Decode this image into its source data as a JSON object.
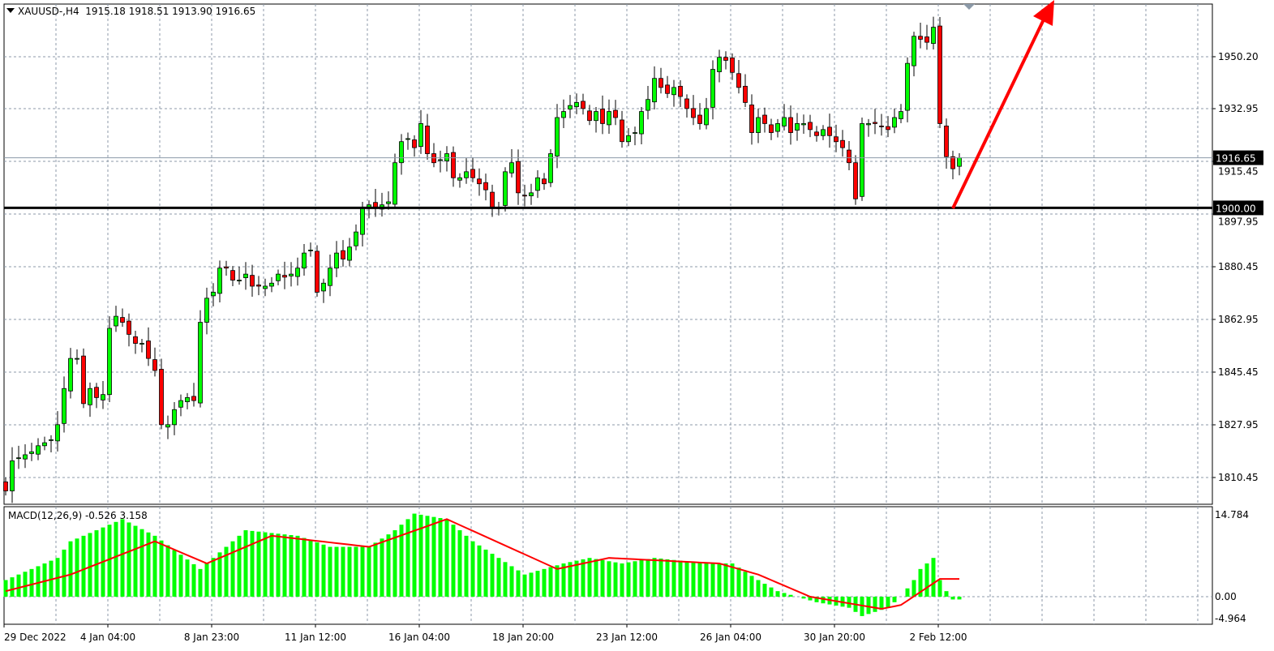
{
  "header": {
    "symbol": "XAUUSD-,H4",
    "ohlc": "1915.18 1918.51 1913.90 1916.65"
  },
  "chart_data": {
    "type": "candlestick",
    "symbol": "XAUUSD-",
    "timeframe": "H4",
    "y_ticks": [
      "1950.20",
      "1932.95",
      "1915.45",
      "1897.95",
      "1880.45",
      "1862.95",
      "1845.45",
      "1827.95",
      "1810.45"
    ],
    "ylim": [
      1805,
      1968
    ],
    "x_ticks": [
      "29 Dec 2022",
      "4 Jan 04:00",
      "8 Jan 23:00",
      "11 Jan 12:00",
      "16 Jan 04:00",
      "18 Jan 20:00",
      "23 Jan 12:00",
      "26 Jan 04:00",
      "30 Jan 20:00",
      "2 Feb 12:00"
    ],
    "grid": true,
    "bull_color": "#00ff00",
    "bear_color": "#ff0000",
    "close": [
      1806,
      1816,
      1817,
      1818,
      1819,
      1821,
      1822,
      1823,
      1828,
      1840,
      1850,
      1850,
      1835,
      1840,
      1837,
      1838,
      1860,
      1864,
      1862,
      1858,
      1855,
      1855,
      1850,
      1846,
      1828,
      1828,
      1833,
      1836,
      1837,
      1836,
      1862,
      1870,
      1872,
      1880,
      1880,
      1876,
      1876,
      1878,
      1874,
      1874,
      1874,
      1875,
      1878,
      1877,
      1878,
      1880,
      1885,
      1886,
      1872,
      1875,
      1880,
      1885,
      1883,
      1887,
      1892,
      1900,
      1901,
      1900,
      1901,
      1902,
      1915,
      1922,
      1923,
      1920,
      1928,
      1918,
      1915,
      1916,
      1918,
      1910,
      1910,
      1912,
      1910,
      1908,
      1906,
      1900,
      1900,
      1912,
      1915,
      1905,
      1904,
      1905,
      1910,
      1908,
      1918,
      1930,
      1932,
      1934,
      1935,
      1933,
      1929,
      1932,
      1928,
      1932,
      1930,
      1922,
      1924,
      1925,
      1932,
      1936,
      1943,
      1940,
      1938,
      1940,
      1937,
      1933,
      1930,
      1928,
      1933,
      1946,
      1950,
      1949,
      1945,
      1940,
      1935,
      1925,
      1930,
      1928,
      1925,
      1928,
      1930,
      1925,
      1928,
      1928,
      1926,
      1924,
      1926,
      1924,
      1922,
      1920,
      1915,
      1903,
      1928,
      1928,
      1928,
      1927,
      1926,
      1930,
      1932,
      1948,
      1957,
      1956,
      1955,
      1960,
      1928,
      1917,
      1913,
      1916.65
    ],
    "last_price": "1916.65",
    "horizontal_line": {
      "price": "1900.00",
      "color": "#000000"
    },
    "annotation": {
      "type": "arrow",
      "color": "#ff0000",
      "direction": "up"
    },
    "indicator": {
      "name": "MACD(12,26,9) -0.526 3.158",
      "y_ticks": [
        "14.784",
        "0.00",
        "-4.964"
      ],
      "ylim": [
        -4.964,
        14.784
      ],
      "histogram_color": "#00ff00",
      "signal_color": "#ff0000",
      "histogram_keypoints": [
        [
          0,
          3
        ],
        [
          8,
          7
        ],
        [
          10,
          10
        ],
        [
          18,
          14
        ],
        [
          23,
          11
        ],
        [
          30,
          5
        ],
        [
          33,
          8
        ],
        [
          37,
          12
        ],
        [
          45,
          11
        ],
        [
          50,
          9
        ],
        [
          56,
          9
        ],
        [
          60,
          12
        ],
        [
          63,
          15
        ],
        [
          68,
          14
        ],
        [
          72,
          10
        ],
        [
          80,
          4
        ],
        [
          86,
          6
        ],
        [
          90,
          7
        ],
        [
          95,
          6
        ],
        [
          100,
          7
        ],
        [
          108,
          6
        ],
        [
          112,
          6
        ],
        [
          116,
          3
        ],
        [
          119,
          1
        ],
        [
          122,
          0
        ],
        [
          125,
          -1
        ],
        [
          130,
          -2
        ],
        [
          132,
          -3.5
        ],
        [
          136,
          -2
        ],
        [
          138,
          0
        ],
        [
          140,
          3
        ],
        [
          141,
          5
        ],
        [
          142,
          6
        ],
        [
          143,
          7
        ],
        [
          144,
          3
        ],
        [
          145,
          1
        ],
        [
          146,
          -0.5
        ]
      ],
      "signal_keypoints": [
        [
          0,
          1
        ],
        [
          10,
          4
        ],
        [
          23,
          10
        ],
        [
          31,
          6
        ],
        [
          41,
          11
        ],
        [
          56,
          9
        ],
        [
          68,
          14
        ],
        [
          85,
          5
        ],
        [
          93,
          7
        ],
        [
          110,
          6
        ],
        [
          116,
          4
        ],
        [
          124,
          0
        ],
        [
          135,
          -2.2
        ],
        [
          138,
          -1.5
        ],
        [
          144,
          3.2
        ],
        [
          146,
          3.2
        ]
      ]
    }
  }
}
